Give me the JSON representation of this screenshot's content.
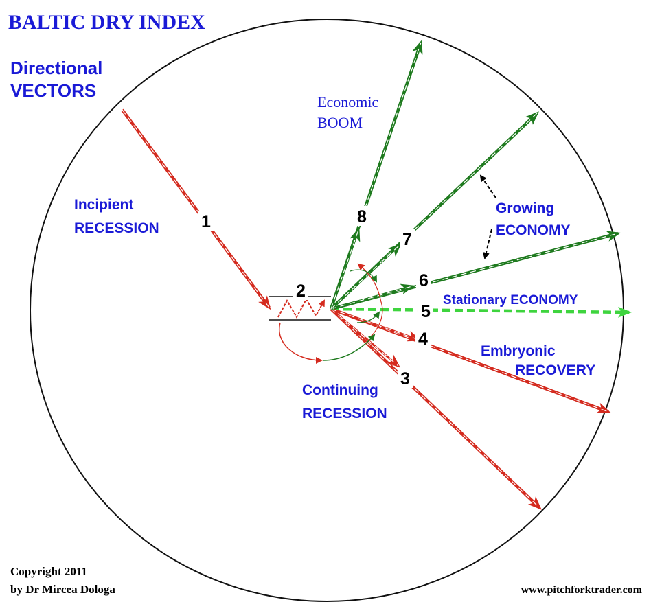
{
  "title": "BALTIC DRY INDEX",
  "subtitle": [
    "Directional",
    "VECTORS"
  ],
  "vectors": [
    {
      "number": "1",
      "label": [
        "Incipient",
        "RECESSION"
      ]
    },
    {
      "number": "2"
    },
    {
      "number": "3",
      "label": [
        "Continuing",
        "RECESSION"
      ]
    },
    {
      "number": "4",
      "label": [
        "Embryonic",
        "RECOVERY"
      ]
    },
    {
      "number": "5",
      "label": [
        "Stationary ECONOMY"
      ]
    },
    {
      "number": "6"
    },
    {
      "number": "7"
    },
    {
      "number": "8",
      "label": [
        "Economic",
        "BOOM"
      ]
    }
  ],
  "growing_label": [
    "Growing",
    "ECONOMY"
  ],
  "footer": {
    "copyright": [
      "Copyright 2011",
      "by Dr Mircea Dologa"
    ],
    "website": "www.pitchforktrader.com"
  }
}
